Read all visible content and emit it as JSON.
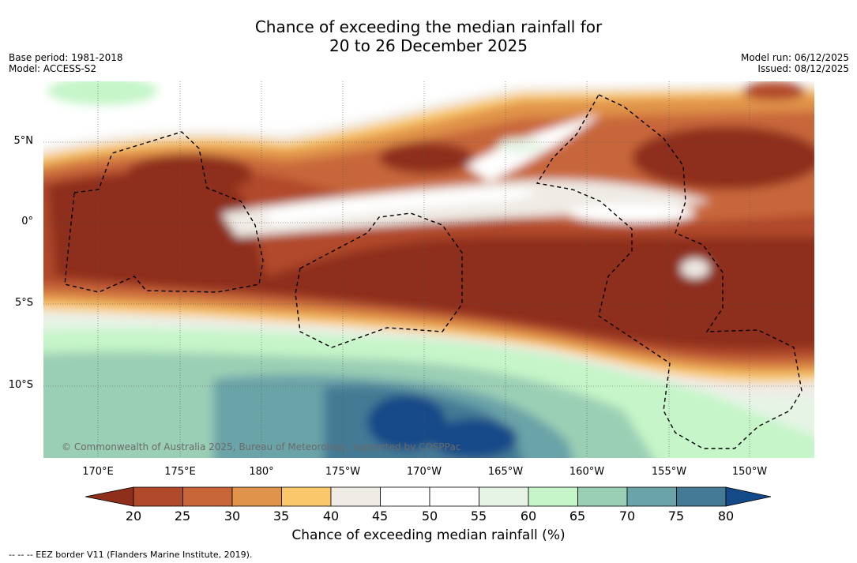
{
  "header": {
    "title_line1": "Chance of exceeding the median rainfall for",
    "title_line2": "20 to 26 December 2025",
    "base_period": "Base period: 1981-2018",
    "model": "Model: ACCESS-S2",
    "model_run": "Model run: 06/12/2025",
    "issued": "Issued: 08/12/2025"
  },
  "map": {
    "copyright": "© Commonwealth of Australia 2025, Bureau of Meteorology, supported by COSPPac",
    "lon_labels": [
      "170°E",
      "175°E",
      "180°",
      "175°W",
      "170°W",
      "165°W",
      "160°W",
      "155°W",
      "150°W"
    ],
    "lat_labels": [
      "5°N",
      "0°",
      "5°S",
      "10°S"
    ]
  },
  "legend": {
    "ticks": [
      "20",
      "25",
      "30",
      "35",
      "40",
      "45",
      "50",
      "55",
      "60",
      "65",
      "70",
      "75",
      "80"
    ],
    "colors": [
      "#8e2f1c",
      "#b14a2a",
      "#c8663a",
      "#e0934a",
      "#fac86a",
      "#efebe5",
      "#ffffff",
      "#ffffff",
      "#e6f4e6",
      "#c5f5c8",
      "#9bcfb5",
      "#6aa3a8",
      "#447a94",
      "#144a88"
    ],
    "label": "Chance of exceeding median rainfall (%)"
  },
  "footnote": "-- -- -- EEZ border V11 (Flanders Marine Institute, 2019)."
}
